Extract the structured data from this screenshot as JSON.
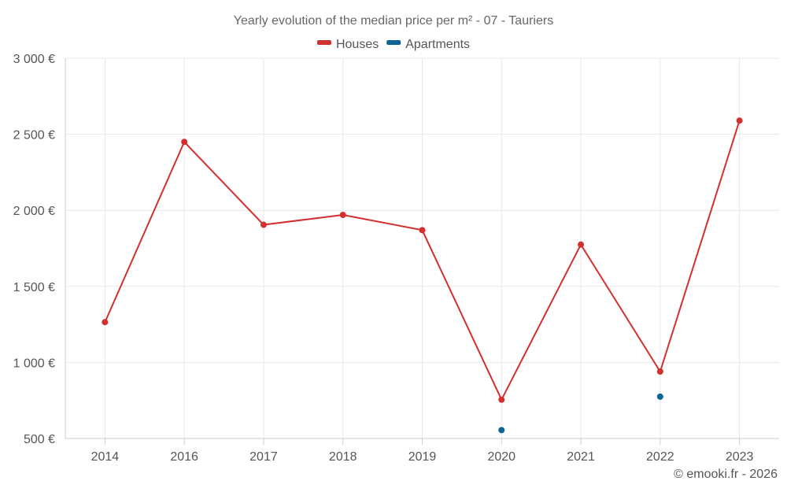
{
  "chart_data": {
    "type": "line",
    "title": "Yearly evolution of the median price per m² - 07 - Tauriers",
    "categories": [
      "2014",
      "2016",
      "2017",
      "2018",
      "2019",
      "2020",
      "2021",
      "2022",
      "2023"
    ],
    "y_ticks": [
      500,
      1000,
      1500,
      2000,
      2500,
      3000
    ],
    "y_tick_labels": [
      "500 €",
      "1 000 €",
      "1 500 €",
      "2 000 €",
      "2 500 €",
      "3 000 €"
    ],
    "ylim": [
      500,
      3000
    ],
    "grid": true,
    "legend_position": "top-center",
    "series": [
      {
        "name": "Houses",
        "color": "#d32f2f",
        "values": [
          1265,
          2450,
          1905,
          1970,
          1870,
          755,
          1775,
          940,
          2590
        ]
      },
      {
        "name": "Apartments",
        "color": "#0d6496",
        "values": [
          null,
          null,
          null,
          null,
          null,
          555,
          null,
          775,
          null
        ]
      }
    ]
  },
  "credit": "© emooki.fr - 2026"
}
